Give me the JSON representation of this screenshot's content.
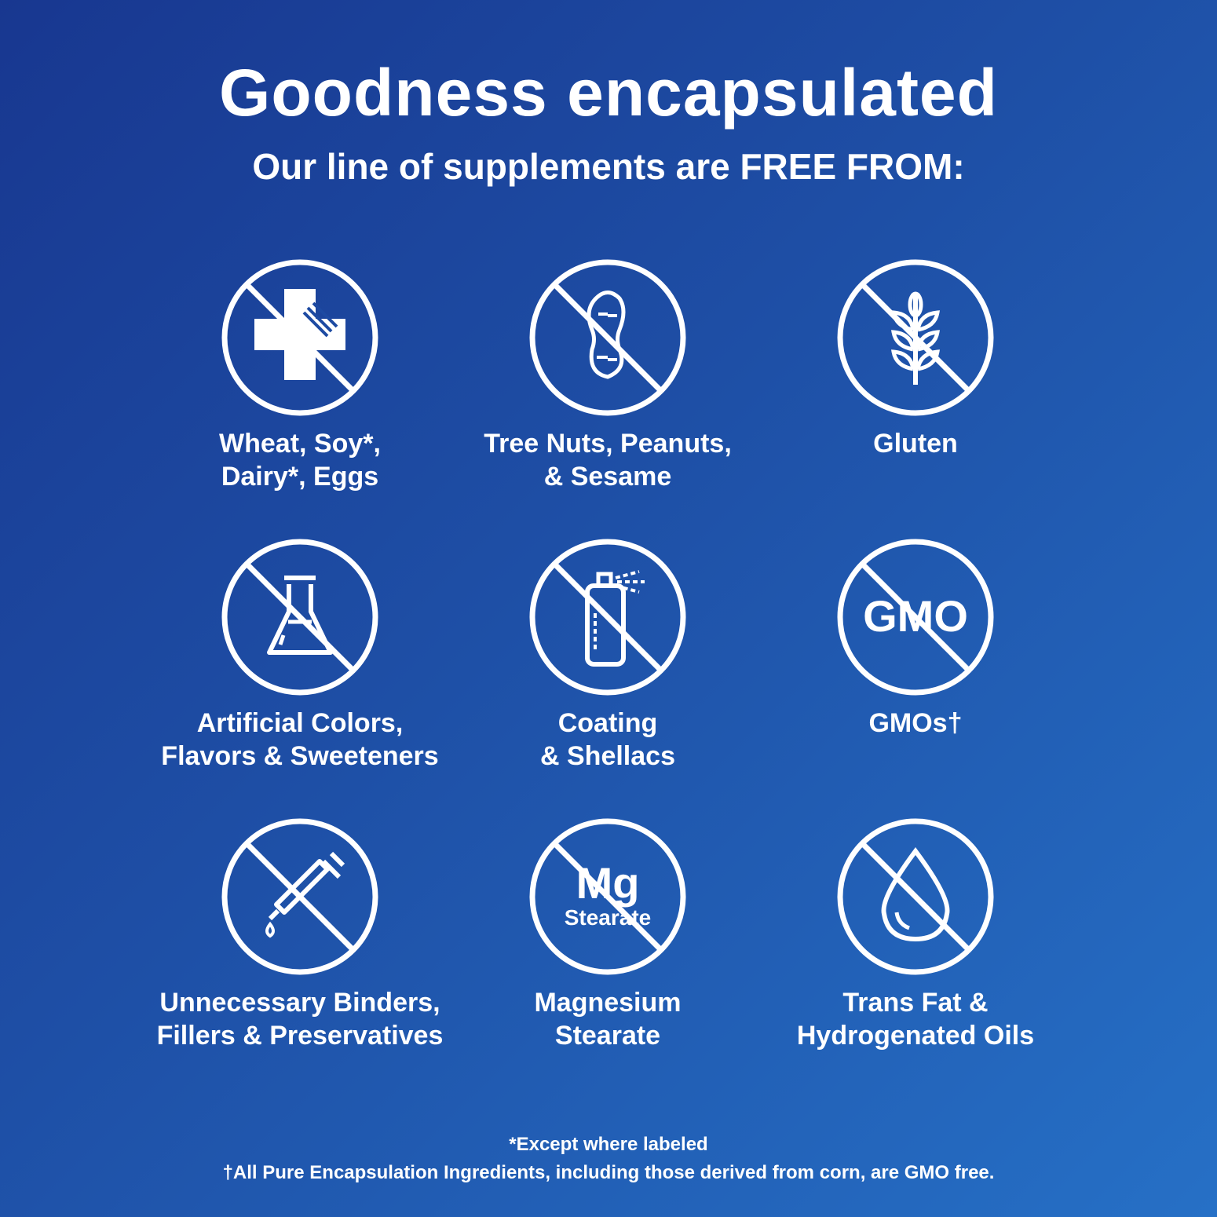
{
  "title": "Goodness encapsulated",
  "subtitle": "Our line of supplements are FREE FROM:",
  "items": [
    {
      "icon": "no-allergen-icon",
      "lines": [
        "Wheat, Soy*,",
        "Dairy*, Eggs"
      ]
    },
    {
      "icon": "no-peanut-icon",
      "lines": [
        "Tree Nuts, Peanuts,",
        "& Sesame"
      ]
    },
    {
      "icon": "no-wheat-icon",
      "lines": [
        "Gluten",
        ""
      ]
    },
    {
      "icon": "no-flask-icon",
      "lines": [
        "Artificial Colors,",
        "Flavors & Sweeteners"
      ]
    },
    {
      "icon": "no-spray-icon",
      "lines": [
        "Coating",
        "& Shellacs"
      ]
    },
    {
      "icon": "no-gmo-icon",
      "icon_text": "GMO",
      "lines": [
        "GMOs†",
        ""
      ]
    },
    {
      "icon": "no-dropper-icon",
      "lines": [
        "Unnecessary Binders,",
        "Fillers & Preservatives"
      ]
    },
    {
      "icon": "no-mg-stearate-icon",
      "icon_text": "Mg",
      "icon_subtext": "Stearate",
      "lines": [
        "Magnesium",
        "Stearate"
      ]
    },
    {
      "icon": "no-oil-drop-icon",
      "lines": [
        "Trans Fat &",
        "Hydrogenated Oils"
      ]
    }
  ],
  "footnotes": [
    "*Except where labeled",
    "†All Pure Encapsulation Ingredients, including those derived from corn, are GMO free."
  ],
  "colors": {
    "background_start": "#183790",
    "background_end": "#2670c6",
    "foreground": "#ffffff"
  }
}
